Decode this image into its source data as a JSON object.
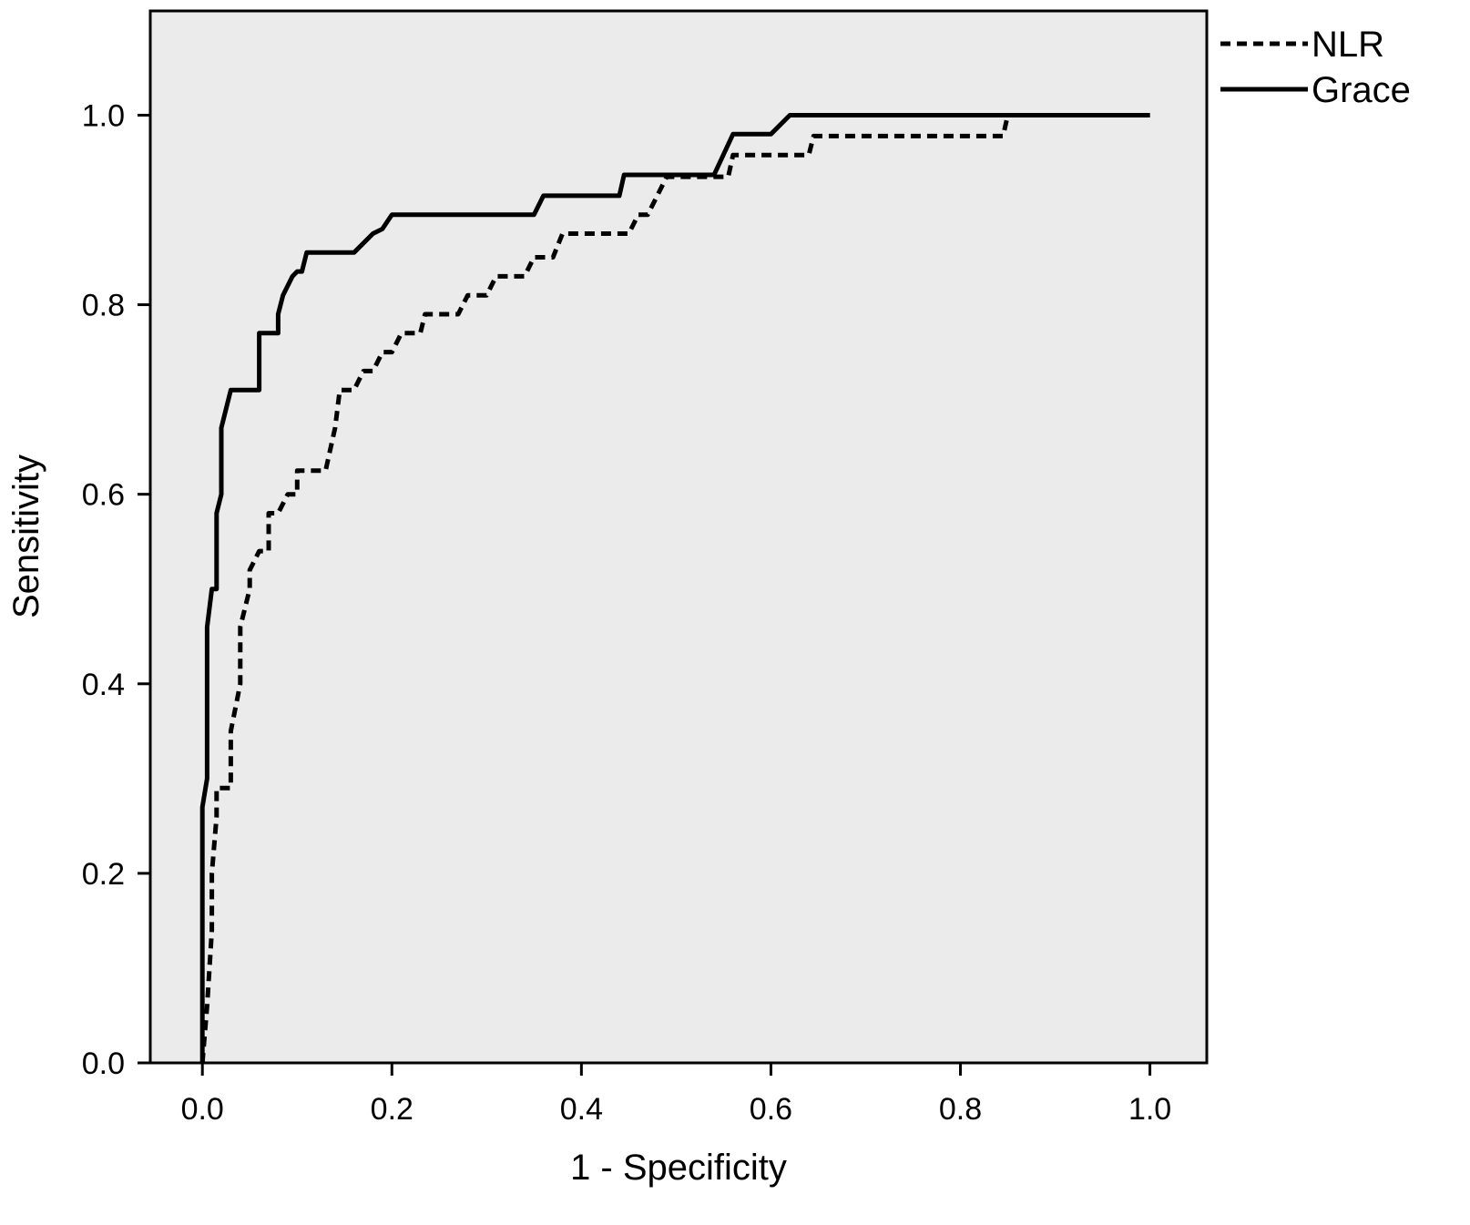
{
  "chart_data": {
    "type": "line",
    "title": "",
    "xlabel": "1 - Specificity",
    "ylabel": "Sensitivity",
    "xlim": [
      -0.055,
      1.06
    ],
    "ylim": [
      0.0,
      1.11
    ],
    "xticks": [
      0.0,
      0.2,
      0.4,
      0.6,
      0.8,
      1.0
    ],
    "yticks": [
      0.0,
      0.2,
      0.4,
      0.6,
      0.8,
      1.0
    ],
    "xtick_labels": [
      "0.0",
      "0.2",
      "0.4",
      "0.6",
      "0.8",
      "1.0"
    ],
    "ytick_labels": [
      "0.0",
      "0.2",
      "0.4",
      "0.6",
      "0.8",
      "1.0"
    ],
    "grid": false,
    "legend_position": "top-right, outside plot",
    "plot_background": "#ebebeb",
    "series": [
      {
        "name": "NLR",
        "style": "dashed",
        "color": "#000000",
        "points": [
          [
            0.0,
            0.0
          ],
          [
            0.005,
            0.06
          ],
          [
            0.01,
            0.14
          ],
          [
            0.01,
            0.2
          ],
          [
            0.015,
            0.26
          ],
          [
            0.015,
            0.29
          ],
          [
            0.03,
            0.29
          ],
          [
            0.03,
            0.35
          ],
          [
            0.04,
            0.4
          ],
          [
            0.04,
            0.46
          ],
          [
            0.05,
            0.5
          ],
          [
            0.05,
            0.52
          ],
          [
            0.06,
            0.54
          ],
          [
            0.07,
            0.54
          ],
          [
            0.07,
            0.58
          ],
          [
            0.08,
            0.58
          ],
          [
            0.09,
            0.6
          ],
          [
            0.1,
            0.6
          ],
          [
            0.1,
            0.625
          ],
          [
            0.13,
            0.625
          ],
          [
            0.14,
            0.67
          ],
          [
            0.145,
            0.71
          ],
          [
            0.16,
            0.71
          ],
          [
            0.17,
            0.73
          ],
          [
            0.18,
            0.73
          ],
          [
            0.19,
            0.75
          ],
          [
            0.2,
            0.75
          ],
          [
            0.21,
            0.77
          ],
          [
            0.23,
            0.77
          ],
          [
            0.235,
            0.79
          ],
          [
            0.27,
            0.79
          ],
          [
            0.28,
            0.81
          ],
          [
            0.3,
            0.81
          ],
          [
            0.31,
            0.83
          ],
          [
            0.34,
            0.83
          ],
          [
            0.35,
            0.85
          ],
          [
            0.37,
            0.85
          ],
          [
            0.38,
            0.875
          ],
          [
            0.45,
            0.875
          ],
          [
            0.46,
            0.895
          ],
          [
            0.47,
            0.895
          ],
          [
            0.49,
            0.935
          ],
          [
            0.555,
            0.935
          ],
          [
            0.56,
            0.958
          ],
          [
            0.64,
            0.958
          ],
          [
            0.645,
            0.978
          ],
          [
            0.845,
            0.978
          ],
          [
            0.85,
            1.0
          ],
          [
            1.0,
            1.0
          ]
        ]
      },
      {
        "name": "Grace",
        "style": "solid",
        "color": "#000000",
        "points": [
          [
            0.0,
            0.0
          ],
          [
            0.0,
            0.27
          ],
          [
            0.005,
            0.3
          ],
          [
            0.005,
            0.46
          ],
          [
            0.01,
            0.5
          ],
          [
            0.015,
            0.5
          ],
          [
            0.015,
            0.58
          ],
          [
            0.02,
            0.6
          ],
          [
            0.02,
            0.67
          ],
          [
            0.025,
            0.69
          ],
          [
            0.03,
            0.71
          ],
          [
            0.06,
            0.71
          ],
          [
            0.06,
            0.77
          ],
          [
            0.08,
            0.77
          ],
          [
            0.08,
            0.79
          ],
          [
            0.085,
            0.81
          ],
          [
            0.095,
            0.83
          ],
          [
            0.1,
            0.835
          ],
          [
            0.105,
            0.835
          ],
          [
            0.11,
            0.855
          ],
          [
            0.16,
            0.855
          ],
          [
            0.18,
            0.875
          ],
          [
            0.19,
            0.88
          ],
          [
            0.2,
            0.895
          ],
          [
            0.35,
            0.895
          ],
          [
            0.36,
            0.915
          ],
          [
            0.44,
            0.915
          ],
          [
            0.445,
            0.937
          ],
          [
            0.54,
            0.937
          ],
          [
            0.56,
            0.98
          ],
          [
            0.6,
            0.98
          ],
          [
            0.62,
            1.0
          ],
          [
            1.0,
            1.0
          ]
        ]
      }
    ]
  }
}
